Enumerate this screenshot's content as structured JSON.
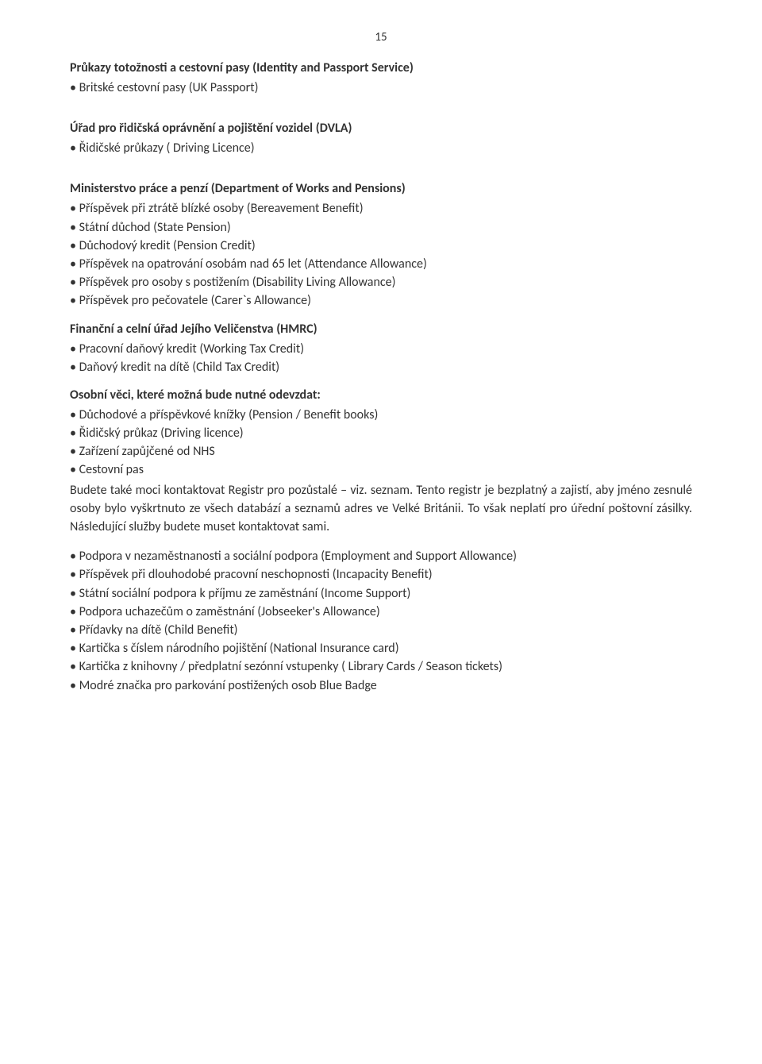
{
  "page_number": "15",
  "text_color": "#333333",
  "background_color": "#ffffff",
  "font_family": "Calibri",
  "base_fontsize_pt": 12,
  "heading_fontsize_pt": 12,
  "heading_fontweight": 700,
  "body_fontweight": 400,
  "sections": {
    "s1": {
      "heading": "Průkazy totožnosti a cestovní pasy (Identity and Passport Service)",
      "items": [
        "• Britské cestovní pasy (UK Passport)"
      ]
    },
    "s2": {
      "heading": "Úřad pro řidičská oprávnění a pojištění vozidel (DVLA)",
      "items": [
        "• Řidičské průkazy ( Driving Licence)"
      ]
    },
    "s3": {
      "heading": "Ministerstvo práce a penzí (Department of Works and Pensions)",
      "items": [
        "• Příspěvek při ztrátě blízké osoby (Bereavement Benefit)",
        "• Státní důchod (State Pension)",
        "• Důchodový kredit (Pension Credit)",
        "• Příspěvek na opatrování osobám nad 65 let (Attendance Allowance)",
        "• Příspěvek pro osoby s postižením (Disability Living Allowance)",
        "• Příspěvek pro pečovatele (Carer`s Allowance)"
      ]
    },
    "s4": {
      "heading": "Finanční a celní úřad Jejího Veličenstva (HMRC)",
      "items": [
        "• Pracovní daňový kredit (Working Tax Credit)",
        "• Daňový kredit na dítě (Child Tax Credit)"
      ]
    },
    "s5": {
      "heading": "Osobní věci, které možná bude nutné odevzdat:",
      "items": [
        "• Důchodové a příspěvkové knížky (Pension / Benefit books)",
        "• Řidičský průkaz (Driving licence)",
        "• Zařízení zapůjčené od NHS",
        "• Cestovní pas"
      ],
      "paragraph": "Budete také moci kontaktovat Registr pro pozůstalé – viz. seznam. Tento registr je bezplatný a zajistí, aby jméno zesnulé osoby bylo vyškrtnuto ze všech databází a seznamů adres ve Velké Británii. To však neplatí pro úřední poštovní zásilky. Následující služby budete muset kontaktovat sami."
    },
    "s6": {
      "items": [
        "• Podpora v nezaměstnanosti a sociální podpora (Employment and Support Allowance)",
        "• Příspěvek při dlouhodobé pracovní neschopnosti (Incapacity Benefit)",
        "• Státní sociální podpora k příjmu ze zaměstnání (Income Support)",
        "• Podpora uchazečům o zaměstnání (Jobseeker's Allowance)",
        "• Přídavky na dítě (Child Benefit)",
        "• Kartička s číslem národního pojištění (National Insurance card)",
        "• Kartička z knihovny / předplatní sezónní vstupenky ( Library Cards / Season tickets)",
        "• Modré značka pro parkování postižených osob Blue Badge"
      ]
    }
  }
}
